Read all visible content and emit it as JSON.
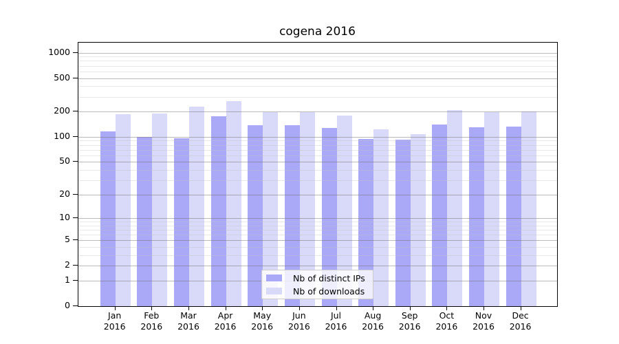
{
  "title": "cogena 2016",
  "colors": {
    "distinct_ips": "#a9a9f7",
    "downloads": "#d9d9fa",
    "axis": "#000000",
    "grid_major": "#b5b5b5",
    "grid_minor": "#e8e8e8",
    "legend_border": "#cccccc"
  },
  "legend": {
    "items": [
      {
        "label": "Nb of distinct IPs",
        "color_key": "distinct_ips"
      },
      {
        "label": "Nb of downloads",
        "color_key": "downloads"
      }
    ]
  },
  "chart_data": {
    "type": "bar",
    "title": "cogena 2016",
    "categories": [
      "Jan 2016",
      "Feb 2016",
      "Mar 2016",
      "Apr 2016",
      "May 2016",
      "Jun 2016",
      "Jul 2016",
      "Aug 2016",
      "Sep 2016",
      "Oct 2016",
      "Nov 2016",
      "Dec 2016"
    ],
    "x_tick_line1": [
      "Jan",
      "Feb",
      "Mar",
      "Apr",
      "May",
      "Jun",
      "Jul",
      "Aug",
      "Sep",
      "Oct",
      "Nov",
      "Dec"
    ],
    "x_tick_line2": [
      "2016",
      "2016",
      "2016",
      "2016",
      "2016",
      "2016",
      "2016",
      "2016",
      "2016",
      "2016",
      "2016",
      "2016"
    ],
    "series": [
      {
        "name": "Nb of distinct IPs",
        "values": [
          117,
          99,
          97,
          175,
          138,
          137,
          127,
          95,
          92,
          141,
          129,
          133
        ]
      },
      {
        "name": "Nb of downloads",
        "values": [
          185,
          191,
          228,
          264,
          198,
          197,
          178,
          122,
          108,
          208,
          197,
          200
        ]
      }
    ],
    "xlabel": "",
    "ylabel": "",
    "y_ticks": [
      0,
      1,
      2,
      5,
      10,
      20,
      50,
      100,
      200,
      500,
      1000
    ],
    "y_minor_gridlines": [
      3,
      4,
      6,
      7,
      8,
      9,
      30,
      40,
      60,
      70,
      80,
      90,
      300,
      400,
      600,
      700,
      800,
      900
    ],
    "y_scale": "log10(1+x)",
    "ylim": [
      0,
      1310
    ],
    "grid": true,
    "legend_position": "bottom-center"
  }
}
